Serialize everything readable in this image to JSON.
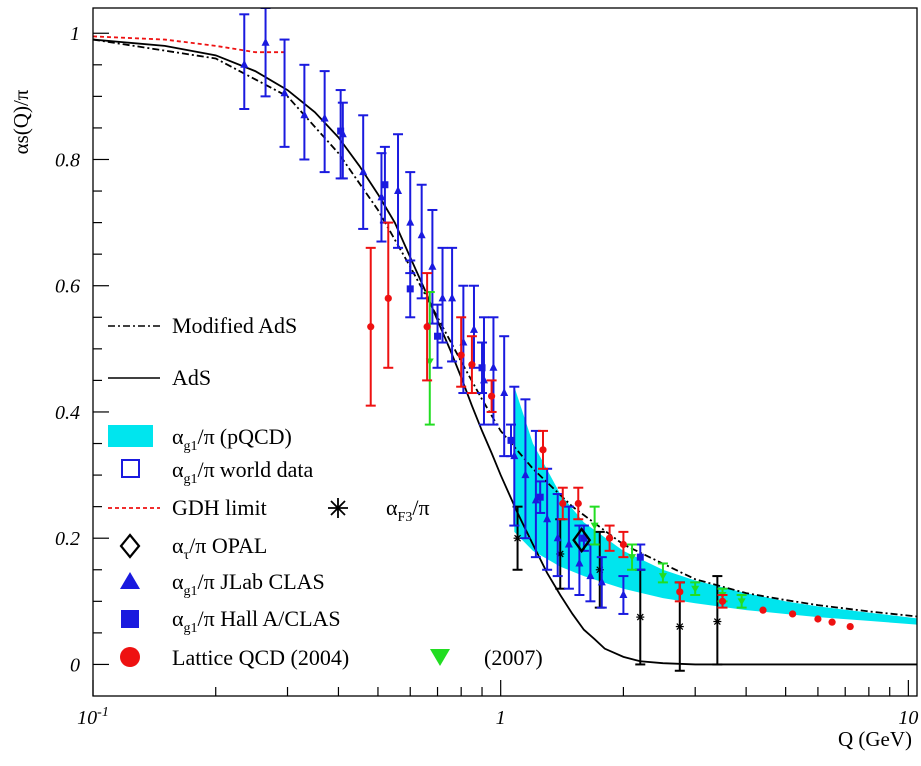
{
  "chart_data": {
    "type": "scatter",
    "xscale": "log",
    "xlim": [
      0.1,
      10.5
    ],
    "ylim": [
      -0.05,
      1.04
    ],
    "xlabel": "Q (GeV)",
    "ylabel": "αs(Q)/π",
    "x_ticks": [
      {
        "value": 0.1,
        "label": "10",
        "sup": "-1"
      },
      {
        "value": 1,
        "label": "1",
        "sup": ""
      },
      {
        "value": 10,
        "label": "10",
        "sup": ""
      }
    ],
    "y_ticks": [
      {
        "value": 0,
        "label": "0"
      },
      {
        "value": 0.2,
        "label": "0.2"
      },
      {
        "value": 0.4,
        "label": "0.4"
      },
      {
        "value": 0.6,
        "label": "0.6"
      },
      {
        "value": 0.8,
        "label": "0.8"
      },
      {
        "value": 1,
        "label": "1"
      }
    ],
    "colors": {
      "band": "#00e5ee",
      "world_data": "#1a1adf",
      "lattice": "#ee1111",
      "lattice2007": "#22dd22",
      "gdh": "#ee1111",
      "curves": "#000000"
    },
    "legend": {
      "modified_ads": "Modified AdS",
      "ads": "AdS",
      "pqcd": "(pQCD)",
      "world_data": "world data",
      "gdh": "GDH limit",
      "f3": "/π",
      "opal": "/π OPAL",
      "clas": "/π JLab CLAS",
      "halla": "/π Hall A/CLAS",
      "lattice2004": "Lattice QCD (2004)",
      "lattice2007": "(2007)"
    },
    "legend_symbols": {
      "alpha": "α",
      "pi": "/π",
      "g1": "g1",
      "F3": "F3",
      "tau": "τ"
    },
    "series": [
      {
        "name": "AdS",
        "style": "solid",
        "x": [
          0.1,
          0.15,
          0.2,
          0.25,
          0.3,
          0.35,
          0.4,
          0.45,
          0.5,
          0.55,
          0.6,
          0.65,
          0.7,
          0.75,
          0.8,
          0.85,
          0.9,
          0.95,
          1.0,
          1.1,
          1.2,
          1.3,
          1.4,
          1.5,
          1.6,
          1.7,
          1.8,
          2.0,
          2.2,
          2.5,
          3.0,
          10.5
        ],
        "y": [
          0.99,
          0.98,
          0.965,
          0.94,
          0.91,
          0.875,
          0.835,
          0.79,
          0.745,
          0.7,
          0.645,
          0.595,
          0.545,
          0.5,
          0.455,
          0.41,
          0.37,
          0.335,
          0.3,
          0.24,
          0.19,
          0.145,
          0.11,
          0.08,
          0.055,
          0.04,
          0.025,
          0.012,
          0.005,
          0.002,
          0.0,
          0.0
        ]
      },
      {
        "name": "Modified AdS",
        "style": "dashdot",
        "x": [
          0.1,
          0.2,
          0.3,
          0.4,
          0.5,
          0.6,
          0.7,
          0.8,
          0.9,
          1.0,
          1.2,
          1.5,
          2.0,
          3.0,
          4.0,
          5.0,
          6.0,
          8.0,
          10.5
        ],
        "y": [
          0.99,
          0.96,
          0.9,
          0.81,
          0.72,
          0.63,
          0.55,
          0.48,
          0.42,
          0.37,
          0.31,
          0.25,
          0.19,
          0.135,
          0.113,
          0.102,
          0.094,
          0.084,
          0.076
        ]
      },
      {
        "name": "GDH limit",
        "style": "dashed",
        "x": [
          0.1,
          0.15,
          0.2,
          0.25,
          0.3
        ],
        "y": [
          0.995,
          0.99,
          0.98,
          0.97,
          0.97
        ]
      },
      {
        "name": "pQCD band",
        "style": "band",
        "x": [
          1.08,
          1.2,
          1.4,
          1.6,
          2.0,
          2.5,
          3.0,
          4.0,
          5.0,
          6.0,
          8.0,
          10.5
        ],
        "ylow": [
          0.21,
          0.18,
          0.155,
          0.14,
          0.12,
          0.105,
          0.097,
          0.086,
          0.08,
          0.075,
          0.069,
          0.063
        ],
        "yhigh": [
          0.44,
          0.35,
          0.27,
          0.225,
          0.18,
          0.15,
          0.133,
          0.113,
          0.1,
          0.092,
          0.082,
          0.073
        ]
      }
    ],
    "points": {
      "clas": [
        {
          "x": 0.235,
          "y": 0.95,
          "lo": 0.88,
          "hi": 1.03
        },
        {
          "x": 0.265,
          "y": 0.985,
          "lo": 0.9,
          "hi": 1.04
        },
        {
          "x": 0.295,
          "y": 0.905,
          "lo": 0.82,
          "hi": 0.99
        },
        {
          "x": 0.33,
          "y": 0.87,
          "lo": 0.8,
          "hi": 0.95
        },
        {
          "x": 0.37,
          "y": 0.865,
          "lo": 0.78,
          "hi": 0.94
        },
        {
          "x": 0.41,
          "y": 0.84,
          "lo": 0.77,
          "hi": 0.89
        },
        {
          "x": 0.46,
          "y": 0.78,
          "lo": 0.69,
          "hi": 0.87
        },
        {
          "x": 0.51,
          "y": 0.74,
          "lo": 0.67,
          "hi": 0.81
        },
        {
          "x": 0.56,
          "y": 0.75,
          "lo": 0.66,
          "hi": 0.84
        },
        {
          "x": 0.6,
          "y": 0.7,
          "lo": 0.62,
          "hi": 0.78
        },
        {
          "x": 0.64,
          "y": 0.68,
          "lo": 0.58,
          "hi": 0.76
        },
        {
          "x": 0.68,
          "y": 0.63,
          "lo": 0.54,
          "hi": 0.72
        },
        {
          "x": 0.72,
          "y": 0.58,
          "lo": 0.51,
          "hi": 0.66
        },
        {
          "x": 0.76,
          "y": 0.58,
          "lo": 0.48,
          "hi": 0.66
        },
        {
          "x": 0.81,
          "y": 0.51,
          "lo": 0.43,
          "hi": 0.6
        },
        {
          "x": 0.86,
          "y": 0.53,
          "lo": 0.47,
          "hi": 0.6
        },
        {
          "x": 0.91,
          "y": 0.45,
          "lo": 0.38,
          "hi": 0.55
        },
        {
          "x": 0.96,
          "y": 0.47,
          "lo": 0.38,
          "hi": 0.55
        },
        {
          "x": 1.02,
          "y": 0.43,
          "lo": 0.33,
          "hi": 0.52
        },
        {
          "x": 1.08,
          "y": 0.33,
          "lo": 0.22,
          "hi": 0.44
        },
        {
          "x": 1.15,
          "y": 0.3,
          "lo": 0.2,
          "hi": 0.42
        },
        {
          "x": 1.22,
          "y": 0.26,
          "lo": 0.17,
          "hi": 0.37
        },
        {
          "x": 1.3,
          "y": 0.23,
          "lo": 0.15,
          "hi": 0.31
        },
        {
          "x": 1.38,
          "y": 0.2,
          "lo": 0.14,
          "hi": 0.27
        },
        {
          "x": 1.47,
          "y": 0.19,
          "lo": 0.12,
          "hi": 0.25
        },
        {
          "x": 1.56,
          "y": 0.16,
          "lo": 0.11,
          "hi": 0.22
        },
        {
          "x": 1.66,
          "y": 0.14,
          "lo": 0.1,
          "hi": 0.19
        },
        {
          "x": 1.77,
          "y": 0.13,
          "lo": 0.09,
          "hi": 0.17
        },
        {
          "x": 2.0,
          "y": 0.11,
          "lo": 0.08,
          "hi": 0.14
        }
      ],
      "halla": [
        {
          "x": 0.405,
          "y": 0.845,
          "lo": 0.77,
          "hi": 0.91
        },
        {
          "x": 0.52,
          "y": 0.76,
          "lo": 0.7,
          "hi": 0.82
        },
        {
          "x": 0.6,
          "y": 0.595,
          "lo": 0.55,
          "hi": 0.64
        },
        {
          "x": 0.7,
          "y": 0.52,
          "lo": 0.47,
          "hi": 0.57
        },
        {
          "x": 0.9,
          "y": 0.47,
          "lo": 0.43,
          "hi": 0.51
        },
        {
          "x": 1.06,
          "y": 0.355,
          "lo": 0.33,
          "hi": 0.38
        },
        {
          "x": 1.25,
          "y": 0.265,
          "lo": 0.24,
          "hi": 0.29
        },
        {
          "x": 1.6,
          "y": 0.2,
          "lo": 0.18,
          "hi": 0.22
        },
        {
          "x": 2.2,
          "y": 0.17,
          "lo": 0.15,
          "hi": 0.19
        }
      ],
      "lattice": [
        {
          "x": 0.48,
          "y": 0.535,
          "lo": 0.41,
          "hi": 0.66
        },
        {
          "x": 0.53,
          "y": 0.58,
          "lo": 0.47,
          "hi": 0.7
        },
        {
          "x": 0.66,
          "y": 0.535,
          "lo": 0.45,
          "hi": 0.62
        },
        {
          "x": 0.8,
          "y": 0.49,
          "lo": 0.44,
          "hi": 0.55
        },
        {
          "x": 0.85,
          "y": 0.475,
          "lo": 0.43,
          "hi": 0.52
        },
        {
          "x": 0.95,
          "y": 0.425,
          "lo": 0.4,
          "hi": 0.45
        },
        {
          "x": 1.27,
          "y": 0.34,
          "lo": 0.31,
          "hi": 0.37
        },
        {
          "x": 1.42,
          "y": 0.255,
          "lo": 0.23,
          "hi": 0.28
        },
        {
          "x": 1.55,
          "y": 0.255,
          "lo": 0.23,
          "hi": 0.28
        },
        {
          "x": 1.85,
          "y": 0.2,
          "lo": 0.18,
          "hi": 0.22
        },
        {
          "x": 2.0,
          "y": 0.19,
          "lo": 0.17,
          "hi": 0.21
        },
        {
          "x": 2.75,
          "y": 0.115,
          "lo": 0.1,
          "hi": 0.13
        },
        {
          "x": 3.5,
          "y": 0.1,
          "lo": 0.09,
          "hi": 0.11
        },
        {
          "x": 4.4,
          "y": 0.086
        },
        {
          "x": 5.2,
          "y": 0.08
        },
        {
          "x": 6.0,
          "y": 0.072
        },
        {
          "x": 6.5,
          "y": 0.067
        },
        {
          "x": 7.2,
          "y": 0.06
        }
      ],
      "lattice2007": [
        {
          "x": 0.67,
          "y": 0.48,
          "lo": 0.38,
          "hi": 0.59
        },
        {
          "x": 1.7,
          "y": 0.22,
          "lo": 0.19,
          "hi": 0.25
        },
        {
          "x": 2.1,
          "y": 0.17,
          "lo": 0.15,
          "hi": 0.19
        },
        {
          "x": 2.5,
          "y": 0.14,
          "lo": 0.13,
          "hi": 0.16
        },
        {
          "x": 3.0,
          "y": 0.12,
          "lo": 0.11,
          "hi": 0.13
        },
        {
          "x": 3.5,
          "y": 0.11,
          "lo": 0.1,
          "hi": 0.12
        },
        {
          "x": 3.9,
          "y": 0.1,
          "lo": 0.09,
          "hi": 0.11
        }
      ],
      "f3": [
        {
          "x": 1.1,
          "y": 0.2,
          "lo": 0.15,
          "hi": 0.25
        },
        {
          "x": 1.4,
          "y": 0.175,
          "lo": 0.12,
          "hi": 0.23
        },
        {
          "x": 1.75,
          "y": 0.15,
          "lo": 0.09,
          "hi": 0.21
        },
        {
          "x": 2.2,
          "y": 0.075,
          "lo": 0.0,
          "hi": 0.15
        },
        {
          "x": 2.75,
          "y": 0.06,
          "lo": -0.01,
          "hi": 0.13
        },
        {
          "x": 3.4,
          "y": 0.068,
          "lo": 0.0,
          "hi": 0.14
        }
      ],
      "opal": [
        {
          "x": 1.58,
          "y": 0.197
        }
      ]
    }
  }
}
